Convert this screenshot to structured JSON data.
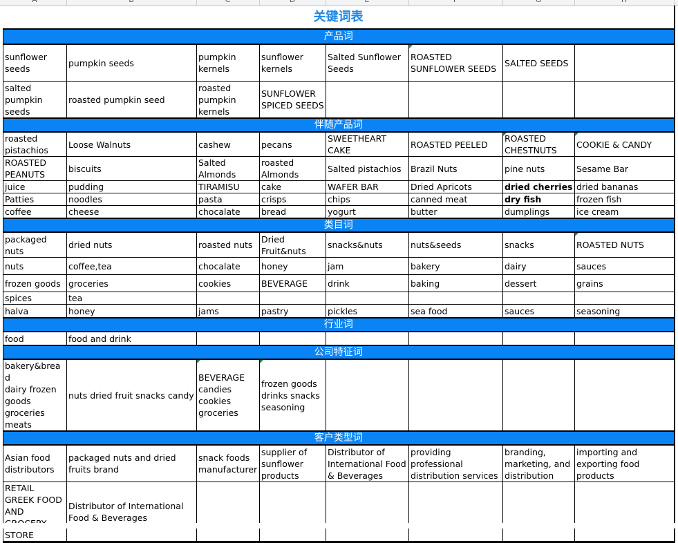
{
  "column_letters": [
    "A",
    "B",
    "C",
    "D",
    "E",
    "F",
    "G",
    "H"
  ],
  "title": "关键词表",
  "colors": {
    "band": "#0a84f5",
    "title": "#1e88e5",
    "comment_marker": "#1a8a2a"
  },
  "sections": [
    {
      "heading": "产品词",
      "rows": [
        {
          "h": 53,
          "cells": [
            "sunflower seeds",
            "pumpkin seeds",
            "pumpkin kernels",
            "sunflower kernels",
            "Salted Sunflower Seeds",
            {
              "t": " ROASTED SUNFLOWER SEEDS",
              "tri": true
            },
            "SALTED SEEDS",
            ""
          ]
        },
        {
          "h": 53,
          "cells": [
            "salted pumpkin seeds",
            "roasted pumpkin seed",
            "roasted pumpkin kernels",
            "SUNFLOWER SPICED SEEDS",
            "",
            "",
            "",
            ""
          ]
        }
      ]
    },
    {
      "heading": "伴随产品词",
      "rows": [
        {
          "h": 33,
          "cells": [
            "roasted pistachios",
            "Loose Walnuts",
            "cashew",
            "pecans",
            "SWEETHEART CAKE",
            " ROASTED PEELED",
            {
              "t": "ROASTED CHESTNUTS",
              "tri": true
            },
            {
              "t": " COOKIE & CANDY",
              "tri": true
            }
          ]
        },
        {
          "h": 32,
          "cells": [
            "ROASTED PEANUTS",
            "biscuits",
            "Salted Almonds",
            "roasted Almonds",
            "Salted pistachios",
            "Brazil Nuts",
            "pine nuts",
            "Sesame Bar"
          ]
        },
        {
          "h": 18,
          "cells": [
            "juice",
            "pudding",
            "TIRAMISU",
            "cake",
            "WAFER BAR",
            "Dried Apricots",
            {
              "t": "dried cherries",
              "b": true
            },
            "dried bananas"
          ]
        },
        {
          "h": 18,
          "cells": [
            "Patties",
            "noodles",
            "pasta",
            "crisps",
            "chips",
            "canned meat",
            {
              "t": "dry fish",
              "b": true
            },
            "frozen fish"
          ]
        },
        {
          "h": 17,
          "cells": [
            "coffee",
            "cheese",
            "chocalate",
            "bread",
            "yogurt",
            "butter",
            "dumplings",
            "ice cream"
          ]
        }
      ]
    },
    {
      "heading": "类目词",
      "rows": [
        {
          "h": 36,
          "cells": [
            "packaged nuts",
            "dried nuts",
            "roasted nuts",
            "Dried Fruit&nuts",
            "snacks&nuts",
            "nuts&seeds",
            "snacks",
            {
              "t": " ROASTED NUTS",
              "tri": true
            }
          ]
        },
        {
          "h": 25,
          "cells": [
            "nuts",
            "coffee,tea",
            "chocalate",
            "honey",
            "jam",
            "bakery",
            "dairy",
            "sauces"
          ]
        },
        {
          "h": 25,
          "cells": [
            "frozen goods",
            "groceries",
            "cookies",
            "BEVERAGE",
            "drink",
            "baking",
            "dessert",
            "grains"
          ]
        },
        {
          "h": 18,
          "cells": [
            "spices",
            "tea",
            "",
            "",
            "",
            "",
            "",
            ""
          ]
        },
        {
          "h": 19,
          "cells": [
            "halva",
            "honey",
            "jams",
            "pastry",
            "pickles",
            "sea food",
            "sauces",
            "seasoning"
          ]
        }
      ]
    },
    {
      "heading": "行业词",
      "rows": [
        {
          "h": 19,
          "cells": [
            "food",
            "food and drink",
            "",
            "",
            "",
            "",
            "",
            ""
          ]
        }
      ]
    },
    {
      "heading": "公司特征词",
      "rows": [
        {
          "h": 87,
          "cells": [
            "bakery&bread\ndairy frozen\ngoods\ngroceries\nmeats",
            "nuts dried fruit snacks candy",
            {
              "t": "BEVERAGE\ncandies\ncookies\ngroceries",
              "tri": true
            },
            {
              "t": " frozen goods\ndrinks snacks\nseasoning",
              "tri": true
            },
            "",
            "",
            "",
            ""
          ]
        }
      ]
    },
    {
      "heading": "客户类型词",
      "rows": [
        {
          "h": 53,
          "cells": [
            "Asian food distributors",
            "packaged nuts and dried fruits brand",
            "snack foods manufacturer",
            "supplier of sunflower products",
            "Distributor of International Food & Beverages",
            "providing professional distribution services",
            "branding, marketing, and distribution",
            "importing and exporting food products"
          ]
        },
        {
          "h": 70,
          "cells": [
            "RETAIL GREEK FOOD AND GROCERY STORE",
            "Distributor of International Food & Beverages",
            "",
            "",
            "",
            "",
            "",
            ""
          ]
        }
      ]
    }
  ]
}
